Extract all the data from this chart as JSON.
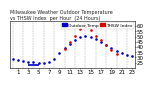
{
  "title": "Milwaukee Weather Outdoor Temperature\nvs THSW Index\nper Hour (24 Hours)",
  "legend_labels": [
    "Outdoor Temp",
    "THSW Index"
  ],
  "legend_colors": [
    "#0000cc",
    "#dd0000"
  ],
  "hours": [
    0,
    1,
    2,
    3,
    4,
    5,
    6,
    7,
    8,
    9,
    10,
    11,
    12,
    13,
    14,
    15,
    16,
    17,
    18,
    19,
    20,
    21,
    22,
    23
  ],
  "temp_values": [
    29,
    28,
    27,
    26,
    26,
    25,
    25,
    26,
    29,
    34,
    39,
    43,
    47,
    50,
    51,
    50,
    48,
    45,
    42,
    39,
    36,
    34,
    32,
    31
  ],
  "thsw_values": [
    null,
    null,
    null,
    null,
    null,
    null,
    null,
    null,
    null,
    null,
    38,
    45,
    51,
    57,
    60,
    56,
    51,
    47,
    42,
    37,
    33,
    null,
    null,
    null
  ],
  "ylim": [
    20,
    65
  ],
  "ytick_positions": [
    25,
    30,
    35,
    40,
    45,
    50,
    55,
    60
  ],
  "ytick_labels": [
    "25",
    "30",
    "35",
    "40",
    "45",
    "50",
    "55",
    "60"
  ],
  "xtick_positions": [
    1,
    3,
    5,
    7,
    9,
    11,
    13,
    15,
    17,
    19,
    21,
    23
  ],
  "xtick_labels": [
    "1",
    "3",
    "5",
    "7",
    "9",
    "11",
    "13",
    "15",
    "17",
    "19",
    "21",
    "23"
  ],
  "bg_color": "#ffffff",
  "plot_bg_color": "#ffffff",
  "grid_color": "#888888",
  "temp_color": "#0000cc",
  "thsw_color": "#dd0000",
  "tick_fontsize": 4.0,
  "title_fontsize": 3.5,
  "legend_fontsize": 3.2,
  "blue_line_x": [
    3,
    5
  ],
  "blue_line_y": [
    23,
    23
  ]
}
